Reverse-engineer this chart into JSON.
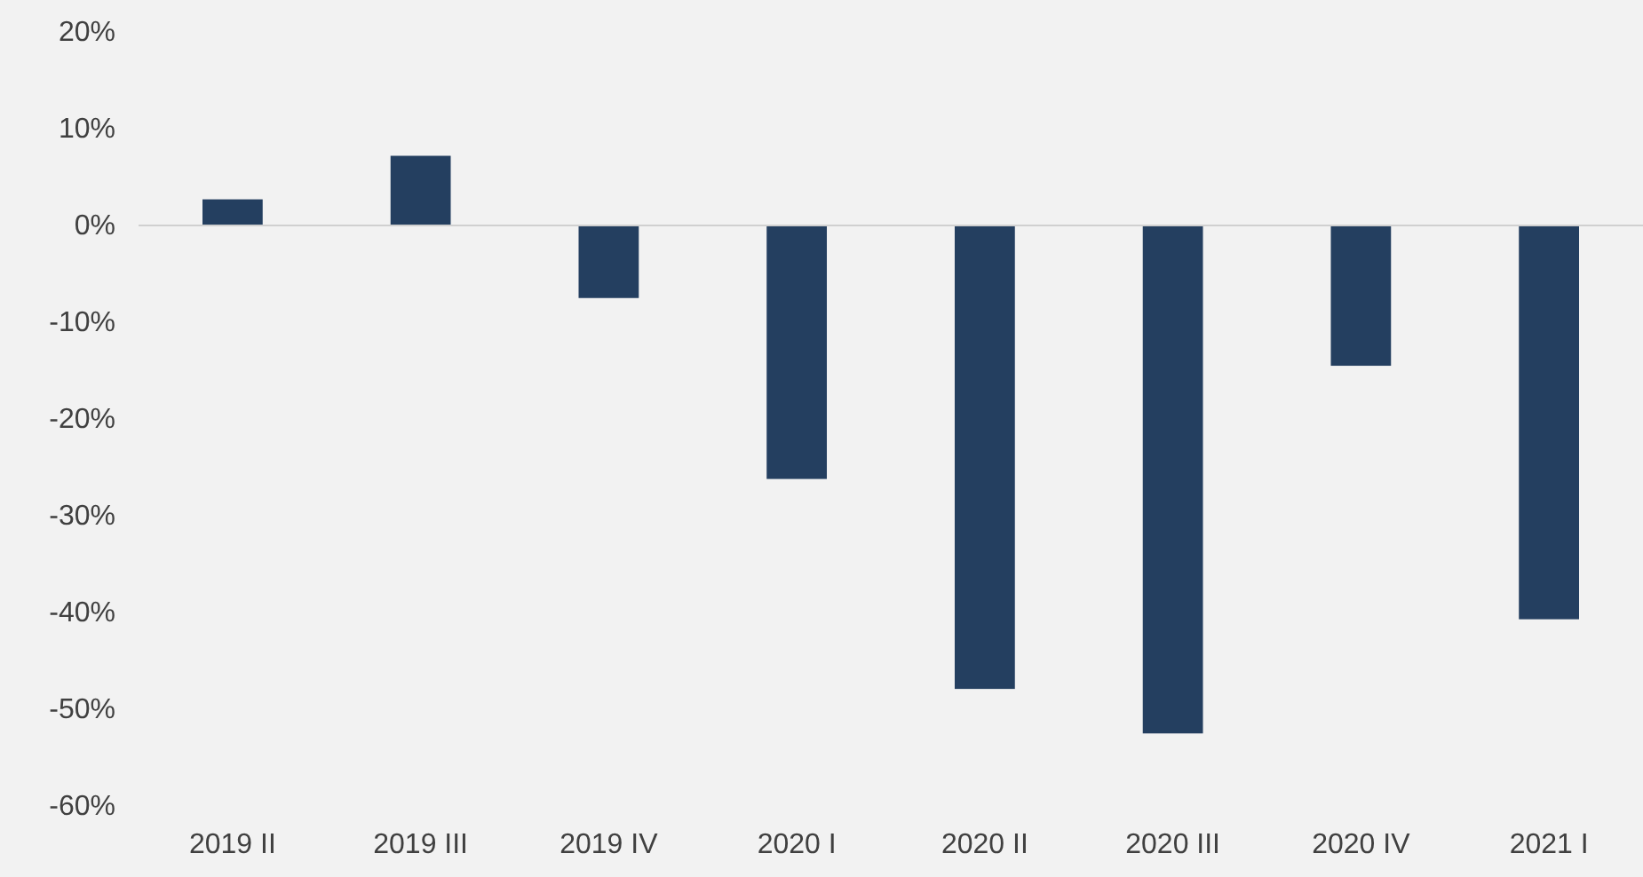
{
  "chart_data": {
    "type": "bar",
    "categories": [
      "2019 II",
      "2019 III",
      "2019 IV",
      "2020 I",
      "2020 II",
      "2020 III",
      "2020 IV",
      "2021 I"
    ],
    "series": [
      {
        "color": "#243f60",
        "values": [
          2.7,
          7.2,
          -7.5,
          -26.2,
          -47.9,
          -52.5,
          -14.5,
          -40.7
        ]
      }
    ],
    "ylim": [
      -60,
      20
    ],
    "yticks": [
      {
        "value": -60,
        "label": "-60%"
      },
      {
        "value": -50,
        "label": "-50%"
      },
      {
        "value": -40,
        "label": "-40%"
      },
      {
        "value": -30,
        "label": "-30%"
      },
      {
        "value": -20,
        "label": "-20%"
      },
      {
        "value": -10,
        "label": "-10%"
      },
      {
        "value": 0,
        "label": "0%"
      },
      {
        "value": 10,
        "label": "10%"
      },
      {
        "value": 20,
        "label": "20%"
      }
    ]
  }
}
